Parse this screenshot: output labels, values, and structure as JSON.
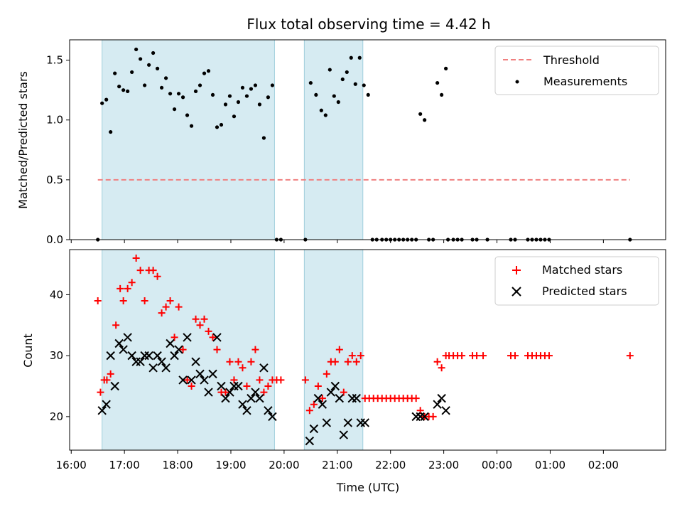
{
  "chart_data": {
    "type": "scatter",
    "title": "Flux total observing time = 4.42 h",
    "xlabel": "Time (UTC)",
    "x_units": "hours since 16:00 UTC",
    "xlim": [
      -0.03,
      11.17
    ],
    "x_ticks": [
      {
        "value": 0,
        "label": "16:00"
      },
      {
        "value": 1,
        "label": "17:00"
      },
      {
        "value": 2,
        "label": "18:00"
      },
      {
        "value": 3,
        "label": "19:00"
      },
      {
        "value": 4,
        "label": "20:00"
      },
      {
        "value": 5,
        "label": "21:00"
      },
      {
        "value": 6,
        "label": "22:00"
      },
      {
        "value": 7,
        "label": "23:00"
      },
      {
        "value": 8,
        "label": "00:00"
      },
      {
        "value": 9,
        "label": "01:00"
      },
      {
        "value": 10,
        "label": "02:00"
      }
    ],
    "observing_windows": [
      {
        "start": 0.58,
        "end": 3.82
      },
      {
        "start": 4.38,
        "end": 5.48
      }
    ],
    "top_panel": {
      "ylabel": "Matched/Predicted stars",
      "ylim": [
        0,
        1.67
      ],
      "y_ticks": [
        {
          "value": 0,
          "label": "0.0"
        },
        {
          "value": 0.5,
          "label": "0.5"
        },
        {
          "value": 1.0,
          "label": "1.0"
        },
        {
          "value": 1.5,
          "label": "1.5"
        }
      ],
      "legend_position": "top-right",
      "threshold": {
        "name": "Threshold",
        "value": 0.5,
        "x_start": 0.5,
        "x_end": 10.5,
        "color": "#f08080"
      },
      "measurements": {
        "name": "Measurements",
        "color": "#000000",
        "points": [
          [
            0.5,
            0.0
          ],
          [
            0.58,
            1.14
          ],
          [
            0.66,
            1.17
          ],
          [
            0.74,
            0.9
          ],
          [
            0.82,
            1.39
          ],
          [
            0.9,
            1.28
          ],
          [
            0.98,
            1.25
          ],
          [
            1.06,
            1.24
          ],
          [
            1.14,
            1.4
          ],
          [
            1.22,
            1.59
          ],
          [
            1.3,
            1.51
          ],
          [
            1.38,
            1.29
          ],
          [
            1.46,
            1.46
          ],
          [
            1.54,
            1.56
          ],
          [
            1.62,
            1.43
          ],
          [
            1.7,
            1.27
          ],
          [
            1.78,
            1.35
          ],
          [
            1.86,
            1.22
          ],
          [
            1.94,
            1.09
          ],
          [
            2.02,
            1.22
          ],
          [
            2.1,
            1.19
          ],
          [
            2.18,
            1.04
          ],
          [
            2.26,
            0.95
          ],
          [
            2.34,
            1.24
          ],
          [
            2.42,
            1.29
          ],
          [
            2.5,
            1.39
          ],
          [
            2.58,
            1.41
          ],
          [
            2.66,
            1.21
          ],
          [
            2.74,
            0.94
          ],
          [
            2.82,
            0.96
          ],
          [
            2.9,
            1.13
          ],
          [
            2.98,
            1.2
          ],
          [
            3.06,
            1.03
          ],
          [
            3.14,
            1.15
          ],
          [
            3.22,
            1.27
          ],
          [
            3.3,
            1.2
          ],
          [
            3.38,
            1.26
          ],
          [
            3.46,
            1.29
          ],
          [
            3.54,
            1.13
          ],
          [
            3.62,
            0.85
          ],
          [
            3.7,
            1.19
          ],
          [
            3.78,
            1.29
          ],
          [
            3.86,
            0.0
          ],
          [
            3.94,
            0.0
          ],
          [
            4.4,
            0.0
          ],
          [
            4.5,
            1.31
          ],
          [
            4.6,
            1.21
          ],
          [
            4.7,
            1.08
          ],
          [
            4.78,
            1.04
          ],
          [
            4.86,
            1.42
          ],
          [
            4.94,
            1.2
          ],
          [
            5.02,
            1.15
          ],
          [
            5.1,
            1.34
          ],
          [
            5.18,
            1.4
          ],
          [
            5.26,
            1.52
          ],
          [
            5.34,
            1.3
          ],
          [
            5.42,
            1.52
          ],
          [
            5.5,
            1.29
          ],
          [
            5.58,
            1.21
          ],
          [
            5.66,
            0.0
          ],
          [
            5.74,
            0.0
          ],
          [
            5.84,
            0.0
          ],
          [
            5.92,
            0.0
          ],
          [
            6.0,
            0.0
          ],
          [
            6.08,
            0.0
          ],
          [
            6.16,
            0.0
          ],
          [
            6.24,
            0.0
          ],
          [
            6.32,
            0.0
          ],
          [
            6.4,
            0.0
          ],
          [
            6.48,
            0.0
          ],
          [
            6.56,
            1.05
          ],
          [
            6.64,
            1.0
          ],
          [
            6.72,
            0.0
          ],
          [
            6.8,
            0.0
          ],
          [
            6.88,
            1.31
          ],
          [
            6.96,
            1.21
          ],
          [
            7.04,
            1.43
          ],
          [
            7.08,
            0.0
          ],
          [
            7.18,
            0.0
          ],
          [
            7.26,
            0.0
          ],
          [
            7.34,
            0.0
          ],
          [
            7.54,
            0.0
          ],
          [
            7.62,
            0.0
          ],
          [
            7.82,
            0.0
          ],
          [
            8.26,
            0.0
          ],
          [
            8.34,
            0.0
          ],
          [
            8.58,
            0.0
          ],
          [
            8.66,
            0.0
          ],
          [
            8.74,
            0.0
          ],
          [
            8.82,
            0.0
          ],
          [
            8.9,
            0.0
          ],
          [
            8.98,
            0.0
          ],
          [
            10.5,
            0.0
          ]
        ]
      }
    },
    "bottom_panel": {
      "ylabel": "Count",
      "ylim": [
        14.5,
        47.4
      ],
      "y_ticks": [
        {
          "value": 20,
          "label": "20"
        },
        {
          "value": 30,
          "label": "30"
        },
        {
          "value": 40,
          "label": "40"
        }
      ],
      "legend_position": "top-right",
      "series": [
        {
          "name": "Matched stars",
          "marker": "plus",
          "color": "#ff0000",
          "points": [
            [
              0.5,
              39
            ],
            [
              0.55,
              24
            ],
            [
              0.62,
              26
            ],
            [
              0.67,
              26
            ],
            [
              0.74,
              27
            ],
            [
              0.84,
              35
            ],
            [
              0.92,
              41
            ],
            [
              0.98,
              39
            ],
            [
              1.06,
              41
            ],
            [
              1.14,
              42
            ],
            [
              1.22,
              46
            ],
            [
              1.3,
              44
            ],
            [
              1.38,
              39
            ],
            [
              1.46,
              44
            ],
            [
              1.54,
              44
            ],
            [
              1.62,
              43
            ],
            [
              1.7,
              37
            ],
            [
              1.78,
              38
            ],
            [
              1.86,
              39
            ],
            [
              1.94,
              33
            ],
            [
              2.02,
              38
            ],
            [
              2.1,
              31
            ],
            [
              2.18,
              26
            ],
            [
              2.26,
              25
            ],
            [
              2.34,
              36
            ],
            [
              2.42,
              35
            ],
            [
              2.5,
              36
            ],
            [
              2.58,
              34
            ],
            [
              2.66,
              33
            ],
            [
              2.74,
              31
            ],
            [
              2.82,
              24
            ],
            [
              2.9,
              24
            ],
            [
              2.98,
              29
            ],
            [
              3.06,
              26
            ],
            [
              3.14,
              29
            ],
            [
              3.22,
              28
            ],
            [
              3.3,
              25
            ],
            [
              3.38,
              29
            ],
            [
              3.46,
              31
            ],
            [
              3.54,
              26
            ],
            [
              3.62,
              24
            ],
            [
              3.7,
              25
            ],
            [
              3.78,
              26
            ],
            [
              3.86,
              26
            ],
            [
              3.94,
              26
            ],
            [
              4.4,
              26
            ],
            [
              4.48,
              21
            ],
            [
              4.56,
              22
            ],
            [
              4.64,
              25
            ],
            [
              4.72,
              23
            ],
            [
              4.8,
              27
            ],
            [
              4.88,
              29
            ],
            [
              4.96,
              29
            ],
            [
              5.04,
              31
            ],
            [
              5.12,
              24
            ],
            [
              5.2,
              29
            ],
            [
              5.28,
              30
            ],
            [
              5.36,
              29
            ],
            [
              5.44,
              30
            ],
            [
              5.52,
              23
            ],
            [
              5.6,
              23
            ],
            [
              5.68,
              23
            ],
            [
              5.76,
              23
            ],
            [
              5.84,
              23
            ],
            [
              5.92,
              23
            ],
            [
              6.0,
              23
            ],
            [
              6.08,
              23
            ],
            [
              6.16,
              23
            ],
            [
              6.24,
              23
            ],
            [
              6.32,
              23
            ],
            [
              6.4,
              23
            ],
            [
              6.48,
              23
            ],
            [
              6.56,
              21
            ],
            [
              6.64,
              20
            ],
            [
              6.72,
              20
            ],
            [
              6.8,
              20
            ],
            [
              6.88,
              29
            ],
            [
              6.96,
              28
            ],
            [
              7.04,
              30
            ],
            [
              7.1,
              30
            ],
            [
              7.18,
              30
            ],
            [
              7.26,
              30
            ],
            [
              7.34,
              30
            ],
            [
              7.54,
              30
            ],
            [
              7.62,
              30
            ],
            [
              7.74,
              30
            ],
            [
              8.26,
              30
            ],
            [
              8.34,
              30
            ],
            [
              8.58,
              30
            ],
            [
              8.66,
              30
            ],
            [
              8.74,
              30
            ],
            [
              8.82,
              30
            ],
            [
              8.9,
              30
            ],
            [
              8.98,
              30
            ],
            [
              10.5,
              30
            ]
          ]
        },
        {
          "name": "Predicted stars",
          "marker": "x",
          "color": "#000000",
          "points": [
            [
              0.58,
              21
            ],
            [
              0.66,
              22
            ],
            [
              0.74,
              30
            ],
            [
              0.82,
              25
            ],
            [
              0.9,
              32
            ],
            [
              0.98,
              31
            ],
            [
              1.06,
              33
            ],
            [
              1.14,
              30
            ],
            [
              1.22,
              29
            ],
            [
              1.3,
              29
            ],
            [
              1.38,
              30
            ],
            [
              1.46,
              30
            ],
            [
              1.54,
              28
            ],
            [
              1.62,
              30
            ],
            [
              1.7,
              29
            ],
            [
              1.78,
              28
            ],
            [
              1.86,
              32
            ],
            [
              1.94,
              30
            ],
            [
              2.02,
              31
            ],
            [
              2.1,
              26
            ],
            [
              2.18,
              33
            ],
            [
              2.26,
              26
            ],
            [
              2.34,
              29
            ],
            [
              2.42,
              27
            ],
            [
              2.5,
              26
            ],
            [
              2.58,
              24
            ],
            [
              2.66,
              27
            ],
            [
              2.74,
              33
            ],
            [
              2.82,
              25
            ],
            [
              2.9,
              23
            ],
            [
              2.98,
              24
            ],
            [
              3.06,
              25
            ],
            [
              3.14,
              25
            ],
            [
              3.22,
              22
            ],
            [
              3.3,
              21
            ],
            [
              3.38,
              23
            ],
            [
              3.46,
              24
            ],
            [
              3.54,
              23
            ],
            [
              3.62,
              28
            ],
            [
              3.7,
              21
            ],
            [
              3.78,
              20
            ],
            [
              4.48,
              16
            ],
            [
              4.56,
              18
            ],
            [
              4.64,
              23
            ],
            [
              4.72,
              22
            ],
            [
              4.8,
              19
            ],
            [
              4.88,
              24
            ],
            [
              4.96,
              25
            ],
            [
              5.04,
              23
            ],
            [
              5.12,
              17
            ],
            [
              5.2,
              19
            ],
            [
              5.28,
              23
            ],
            [
              5.36,
              23
            ],
            [
              5.44,
              19
            ],
            [
              5.52,
              19
            ],
            [
              6.48,
              20
            ],
            [
              6.56,
              20
            ],
            [
              6.64,
              20
            ],
            [
              6.88,
              22
            ],
            [
              6.96,
              23
            ],
            [
              7.04,
              21
            ]
          ]
        }
      ]
    }
  }
}
